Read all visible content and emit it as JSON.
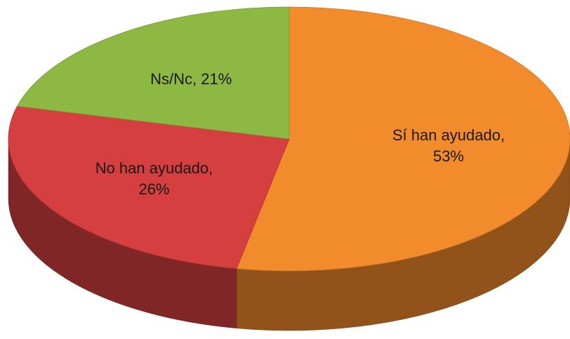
{
  "chart_data": {
    "type": "pie3d",
    "values": [
      53,
      26,
      21
    ],
    "value_labels": [
      "Sí han ayudado, 53%",
      "No han ayudado, 26%",
      "Ns/Nc, 21%"
    ],
    "colors": [
      "#f28b2b",
      "#d63f3f",
      "#8cb843"
    ]
  }
}
